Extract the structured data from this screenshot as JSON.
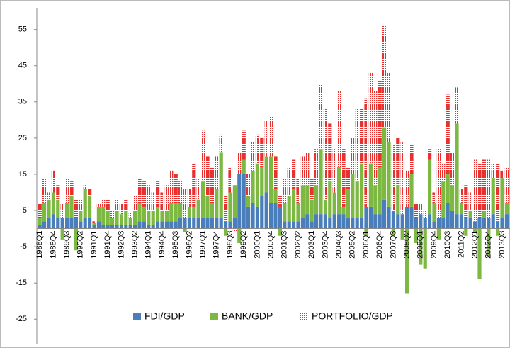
{
  "chart_data": {
    "type": "stacked-bar",
    "categories": [
      "1988Q1",
      null,
      null,
      "1988Q4",
      null,
      null,
      "1989Q3",
      null,
      null,
      "1990Q2",
      null,
      null,
      "1991Q1",
      null,
      null,
      "1991Q4",
      null,
      null,
      "1992Q3",
      null,
      null,
      "1993Q2",
      null,
      null,
      "1994Q1",
      null,
      null,
      "1994Q4",
      null,
      null,
      "1995Q3",
      null,
      null,
      "1996Q2",
      null,
      null,
      "1997Q1",
      null,
      null,
      "1997Q4",
      null,
      null,
      "1998Q3",
      null,
      null,
      "1999Q2",
      null,
      null,
      "2000Q1",
      null,
      null,
      "2000Q4",
      null,
      null,
      "2001Q3",
      null,
      null,
      "2002Q2",
      null,
      null,
      "2003Q1",
      null,
      null,
      "2003Q4",
      null,
      null,
      "2004Q3",
      null,
      null,
      "2005Q2",
      null,
      null,
      "2006Q1",
      null,
      null,
      "2006Q4",
      null,
      null,
      "2007Q3",
      null,
      null,
      "2008Q2",
      null,
      null,
      "2009Q1",
      null,
      null,
      "2009Q4",
      null,
      null,
      "2010Q3",
      null,
      null,
      "2011Q2",
      null,
      null,
      "2012Q1",
      null,
      null,
      "2012Q4",
      null,
      null,
      "2013Q3",
      null
    ],
    "series": [
      {
        "name": "FDI/GDP",
        "color": "#4a7ebb",
        "values": [
          1,
          2,
          3,
          4,
          3,
          3,
          3,
          3,
          3,
          2,
          3,
          3,
          1,
          2,
          1,
          1,
          1,
          1,
          1,
          1,
          1,
          1,
          2,
          2,
          1,
          1,
          2,
          2,
          2,
          2,
          2,
          3,
          3,
          3,
          3,
          3,
          3,
          3,
          3,
          3,
          3,
          2,
          2,
          3,
          15,
          15,
          6,
          7,
          6,
          9,
          10,
          7,
          7,
          6,
          2,
          2,
          2,
          2,
          3,
          4,
          2,
          4,
          4,
          4,
          3,
          4,
          4,
          4,
          3,
          3,
          3,
          3,
          6,
          6,
          4,
          4,
          8,
          6,
          5,
          4,
          4,
          6,
          6,
          3,
          4,
          3,
          4,
          2,
          3,
          3,
          7,
          5,
          4,
          4,
          3,
          3,
          2,
          3,
          3,
          3,
          4,
          2,
          3,
          4
        ]
      },
      {
        "name": "BANK/GDP",
        "color": "#7db843",
        "values": [
          2,
          5,
          5,
          6,
          5,
          -3,
          4,
          6,
          -6,
          3,
          8,
          6,
          0.5,
          4,
          5,
          4,
          2,
          4,
          3,
          4,
          2,
          4,
          5,
          4,
          4,
          4,
          4,
          3,
          3,
          5,
          5,
          4,
          -1,
          3,
          3,
          5,
          10,
          6,
          4,
          8,
          18,
          -2,
          8,
          9,
          -4,
          4,
          3,
          9,
          12,
          8,
          10,
          13,
          4,
          -2,
          5,
          7,
          9,
          5,
          9,
          8,
          6,
          8,
          18,
          4,
          10,
          6,
          13,
          2,
          8,
          12,
          10,
          15,
          -2,
          12,
          8,
          13,
          20,
          18,
          -2,
          8,
          -3,
          -18,
          9,
          -4,
          -10,
          -11,
          15,
          5,
          -3,
          10,
          8,
          7,
          25,
          3,
          -2,
          2,
          -1,
          -14,
          2,
          -8,
          10,
          -2,
          11,
          3
        ]
      },
      {
        "name": "PORTFOLIO/GDP",
        "color": "#e8302f",
        "values": [
          4,
          7,
          2,
          6,
          4,
          4,
          7,
          4,
          5,
          3,
          1,
          2,
          0.5,
          1,
          2,
          3,
          2,
          3,
          3,
          3,
          1.5,
          4,
          7,
          7,
          7,
          5,
          7,
          5,
          7,
          9,
          8,
          6,
          8,
          5,
          12,
          6,
          14,
          11,
          10,
          9,
          5,
          7,
          7,
          -1,
          6,
          8,
          6,
          8,
          8,
          8,
          10,
          11,
          9,
          3,
          7,
          8,
          8,
          7,
          8,
          9,
          6,
          10,
          18,
          25,
          16,
          12,
          21,
          16,
          6,
          10,
          20,
          15,
          30,
          25,
          26,
          24,
          28,
          19,
          18,
          13,
          20,
          10,
          8,
          4,
          3,
          2,
          3,
          3,
          19,
          5,
          22,
          9,
          10,
          4,
          9,
          5,
          17,
          15,
          14,
          16,
          4,
          16,
          2,
          10
        ]
      }
    ],
    "ylim": [
      -32,
      61
    ],
    "yticks": [
      -25,
      -15,
      -5,
      5,
      15,
      25,
      35,
      45,
      55
    ]
  }
}
